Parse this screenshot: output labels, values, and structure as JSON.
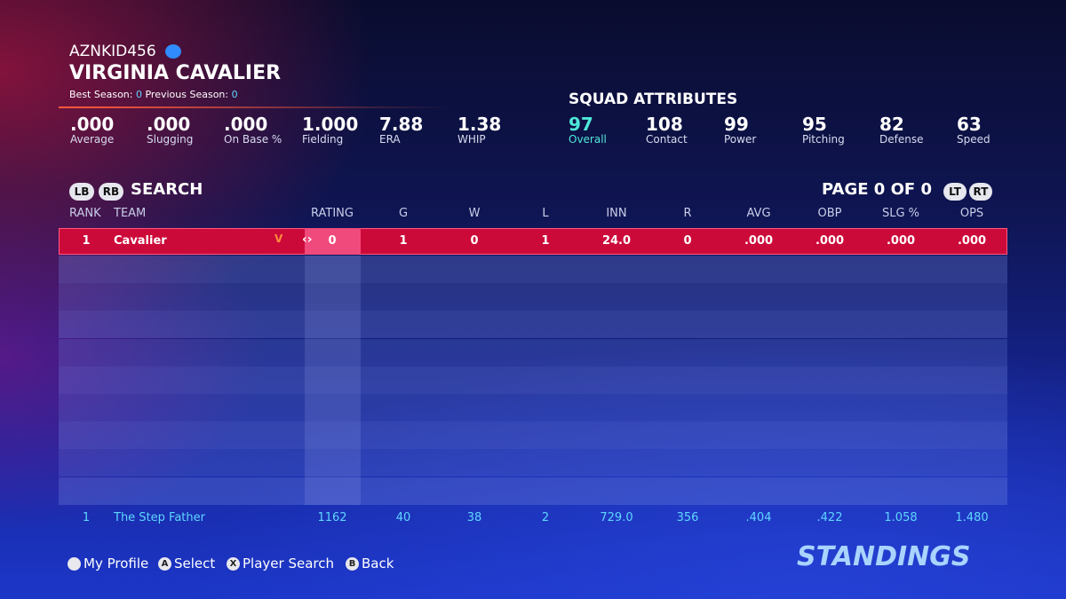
{
  "profile": {
    "gamertag": "AZNKID456",
    "team": "VIRGINIA CAVALIER",
    "best_season_label": "Best Season:",
    "best_season": "0",
    "previous_season_label": "Previous Season:",
    "previous_season": "0"
  },
  "team_stats": [
    {
      "value": ".000",
      "label": "Average"
    },
    {
      "value": ".000",
      "label": "Slugging"
    },
    {
      "value": ".000",
      "label": "On Base %"
    },
    {
      "value": "1.000",
      "label": "Fielding"
    },
    {
      "value": "7.88",
      "label": "ERA"
    },
    {
      "value": "1.38",
      "label": "WHIP"
    }
  ],
  "squad": {
    "title": "SQUAD ATTRIBUTES",
    "attributes": [
      {
        "value": "97",
        "label": "Overall"
      },
      {
        "value": "108",
        "label": "Contact"
      },
      {
        "value": "99",
        "label": "Power"
      },
      {
        "value": "95",
        "label": "Pitching"
      },
      {
        "value": "82",
        "label": "Defense"
      },
      {
        "value": "63",
        "label": "Speed"
      }
    ]
  },
  "toolbar": {
    "lb": "LB",
    "rb": "RB",
    "search": "SEARCH",
    "page": "PAGE 0 OF 0",
    "lt": "LT",
    "rt": "RT"
  },
  "table": {
    "columns": [
      "RANK",
      "TEAM",
      "RATING",
      "G",
      "W",
      "L",
      "INN",
      "R",
      "AVG",
      "OBP",
      "SLG %",
      "OPS"
    ],
    "rows": [
      [
        "1",
        "Cavalier",
        "0",
        "1",
        "0",
        "1",
        "24.0",
        "0",
        ".000",
        ".000",
        ".000",
        ".000"
      ]
    ],
    "footer_row": [
      "1",
      "The Step Father",
      "1162",
      "40",
      "38",
      "2",
      "729.0",
      "356",
      ".404",
      ".422",
      "1.058",
      "1.480"
    ]
  },
  "footer": {
    "buttons": [
      {
        "label": "My Profile"
      },
      {
        "key": "A",
        "label": "Select"
      },
      {
        "key": "X",
        "label": "Player Search"
      },
      {
        "key": "B",
        "label": "Back"
      }
    ],
    "screen_title": "STANDINGS"
  }
}
